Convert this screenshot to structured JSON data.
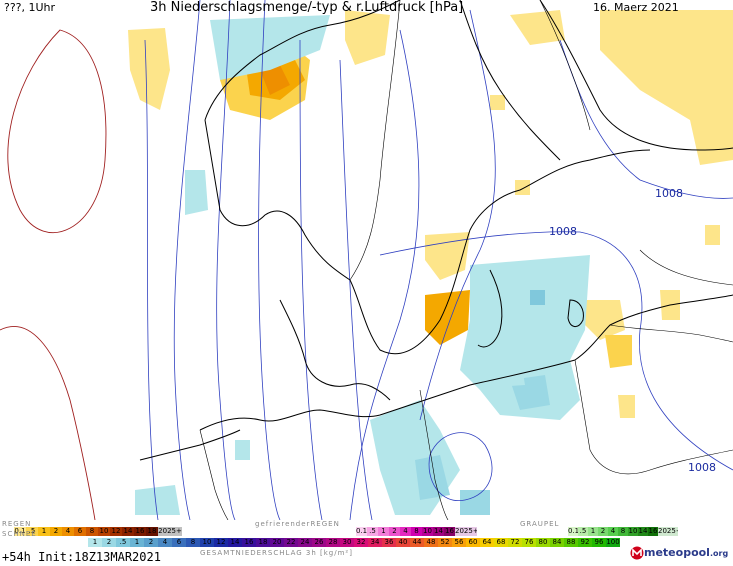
{
  "header": {
    "left": "???, 1Uhr",
    "title": "3h Niederschlagsmenge/-typ & r.Luftdruck [hPa]",
    "date": "16. Maerz 2021"
  },
  "isobars": {
    "labels": [
      "1008",
      "1008",
      "1008"
    ]
  },
  "legend": {
    "rain_label": "REGEN",
    "rain_scale": [
      "0.1",
      ".5",
      "1",
      "2",
      "4",
      "6",
      "8",
      "10",
      "12",
      "14",
      "16",
      "18",
      "2025+"
    ],
    "freezing_label": "gefrierenderREGEN",
    "freezing_scale": [
      "0.1",
      ".5",
      "1",
      "2",
      "4",
      "8",
      "10",
      "14",
      "16",
      "2025+"
    ],
    "graupel_label": "GRAUPEL",
    "graupel_scale": [
      "0.1",
      ".5",
      "1",
      "2",
      "4",
      "8",
      "10",
      "14",
      "16",
      "2025+"
    ],
    "snow_label": "SCHNEE",
    "snow_scale": [
      "1",
      "2",
      ".5",
      "1",
      "2",
      "4",
      "6",
      "8",
      "10",
      "12",
      "14",
      "16",
      "18",
      "20",
      "22",
      "24",
      "26",
      "28",
      "30",
      "32",
      "34",
      "36",
      "40",
      "44",
      "48",
      "52",
      "56",
      "60",
      "64",
      "68",
      "72",
      "76",
      "80",
      "84",
      "88",
      "92",
      "96",
      "100"
    ],
    "total_label": "GESAMTNIEDERSCHLAG 3h [kg/m²]",
    "colors": {
      "rain": [
        "#fde58a",
        "#fbd34d",
        "#f9c018",
        "#f4a800",
        "#ee8f00",
        "#e07000",
        "#cc5500",
        "#b84000",
        "#a33000",
        "#8c2200",
        "#7a1a00",
        "#661200",
        "#c0c0c0"
      ],
      "freezing": [
        "#fbd0f0",
        "#f7a6e4",
        "#f27cd8",
        "#ec52cc",
        "#e428c0",
        "#d000b0",
        "#b80098",
        "#a00080",
        "#880068",
        "#e6c8e6"
      ],
      "graupel": [
        "#d8f5c8",
        "#b8ecaa",
        "#98e28c",
        "#78d86e",
        "#58ce50",
        "#40b838",
        "#30a028",
        "#208818",
        "#107008",
        "#cfe8cf"
      ],
      "snow": [
        "#b4e6ea",
        "#9ad8e4",
        "#80c8dc",
        "#6ab4d4",
        "#5aa0cc",
        "#4a88c4",
        "#3a70bc",
        "#2c58b4",
        "#2040ac",
        "#1c2aa4",
        "#2418a0",
        "#38109c",
        "#4c0c98",
        "#600894",
        "#740890",
        "#88088c",
        "#9c0888",
        "#b00884",
        "#c40880",
        "#d80c78",
        "#e01c60",
        "#e4304c",
        "#e84438",
        "#ec5a28",
        "#f07018",
        "#f48810",
        "#f8a008",
        "#fcb800",
        "#f8cc00",
        "#e8d800",
        "#d0dc00",
        "#b8e000",
        "#98d800",
        "#78d000",
        "#58c800",
        "#38c000",
        "#20b800",
        "#10a810"
      ]
    }
  },
  "footer": {
    "init": "+54h Init:18Z13MAR2021",
    "brand": "meteopool",
    "brand_suffix": ".org"
  }
}
